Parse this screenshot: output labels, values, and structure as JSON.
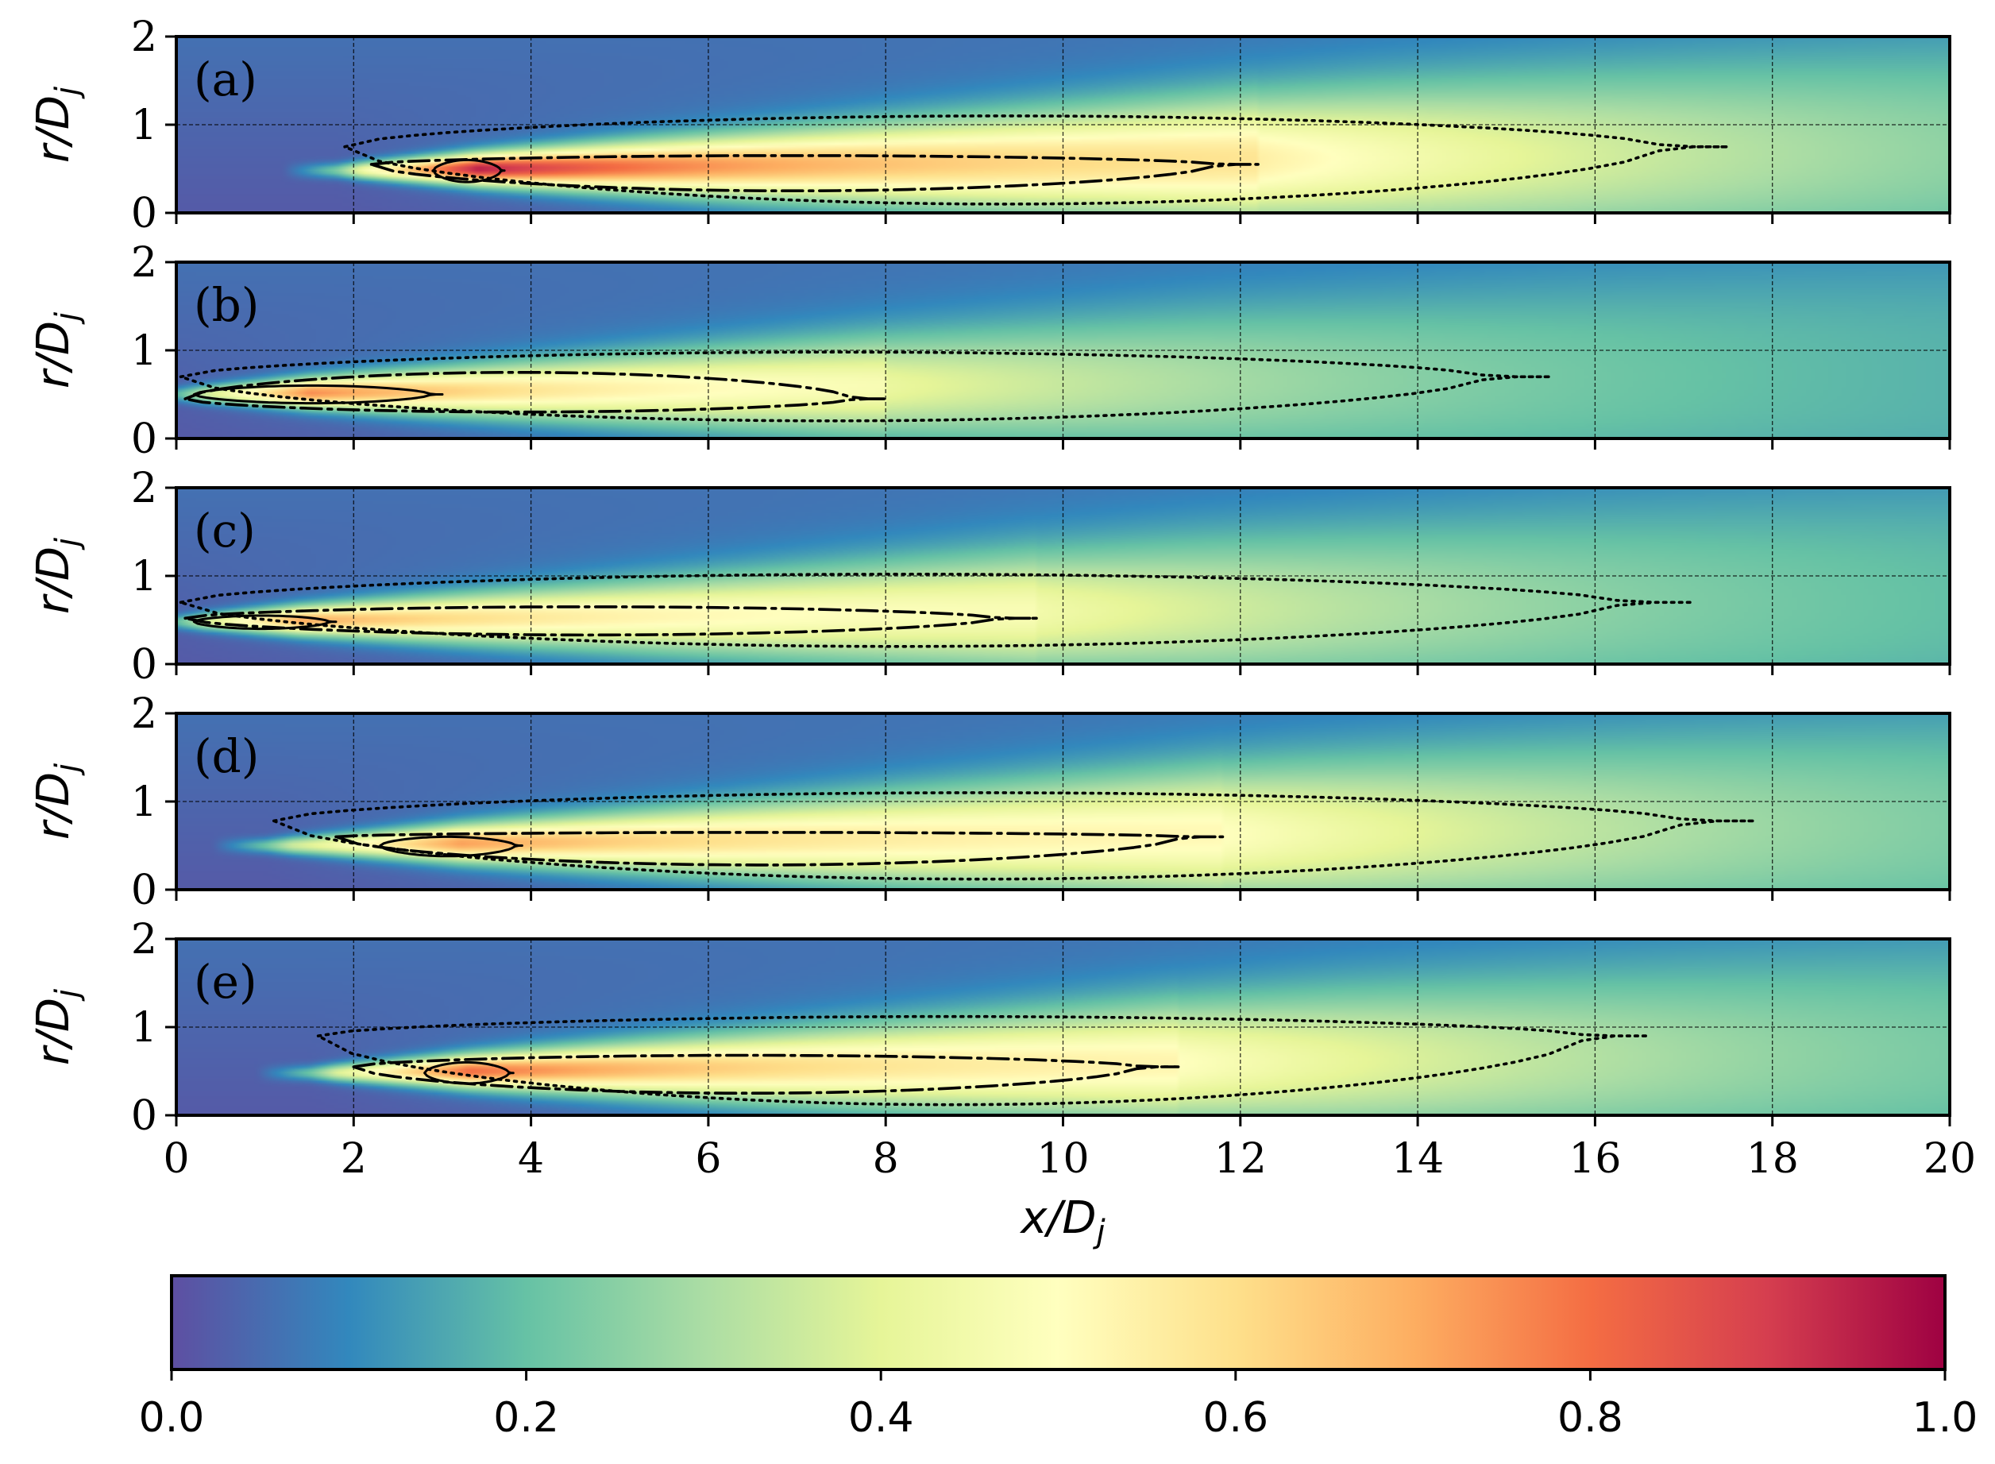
{
  "chart_data": {
    "type": "heatmap",
    "colormap": "Spectral_r",
    "colormap_stops": [
      "#5e4fa2",
      "#3288bd",
      "#66c2a5",
      "#abdda4",
      "#e6f598",
      "#ffffbf",
      "#fee08b",
      "#fdae61",
      "#f46d43",
      "#d53e4f",
      "#9e0142"
    ],
    "xlabel": "x/D",
    "xlabel_sub": "j",
    "ylabel": "r/D",
    "ylabel_sub": "j",
    "xlim": [
      0,
      20
    ],
    "ylim": [
      0,
      2
    ],
    "xticks": [
      0,
      2,
      4,
      6,
      8,
      10,
      12,
      14,
      16,
      18,
      20
    ],
    "yticks": [
      0,
      1,
      2
    ],
    "grid": true,
    "colorbar": {
      "range": [
        0.0,
        1.0
      ],
      "ticks": [
        "0.0",
        "0.2",
        "0.4",
        "0.6",
        "0.8",
        "1.0"
      ]
    },
    "panels": [
      {
        "label": "(a)",
        "field": {
          "x_start": 1.8,
          "x_peak": 3.4,
          "r_peak": 0.48,
          "peak": 0.95,
          "x_core_end": 12.2,
          "plateau": 0.55
        },
        "contours": [
          {
            "style": "dotted",
            "x_start": 1.9,
            "x_end": 17.5,
            "r_tip": 0.75,
            "r_top_max": 1.1,
            "r_bottom_min": 0.1
          },
          {
            "style": "dashdot",
            "x_start": 2.2,
            "x_end": 12.2,
            "r_tip": 0.55,
            "r_top_max": 0.65,
            "r_bottom_min": 0.25
          },
          {
            "style": "solid",
            "x_start": 2.9,
            "x_end": 3.7,
            "r_tip": 0.48,
            "r_top_max": 0.6,
            "r_bottom_min": 0.35
          }
        ]
      },
      {
        "label": "(b)",
        "field": {
          "x_start": 0.0,
          "x_peak": 1.5,
          "r_peak": 0.5,
          "peak": 0.75,
          "x_core_end": 8.0,
          "plateau": 0.42
        },
        "contours": [
          {
            "style": "dotted",
            "x_start": 0.05,
            "x_end": 15.5,
            "r_tip": 0.7,
            "r_top_max": 0.98,
            "r_bottom_min": 0.2
          },
          {
            "style": "dashdot",
            "x_start": 0.1,
            "x_end": 8.0,
            "r_tip": 0.45,
            "r_top_max": 0.75,
            "r_bottom_min": 0.3
          },
          {
            "style": "solid",
            "x_start": 0.2,
            "x_end": 3.0,
            "r_tip": 0.5,
            "r_top_max": 0.6,
            "r_bottom_min": 0.4
          }
        ]
      },
      {
        "label": "(c)",
        "field": {
          "x_start": 0.0,
          "x_peak": 1.4,
          "r_peak": 0.48,
          "peak": 0.7,
          "x_core_end": 9.7,
          "plateau": 0.45
        },
        "contours": [
          {
            "style": "dotted",
            "x_start": 0.05,
            "x_end": 17.1,
            "r_tip": 0.7,
            "r_top_max": 1.02,
            "r_bottom_min": 0.2
          },
          {
            "style": "dashdot",
            "x_start": 0.1,
            "x_end": 9.7,
            "r_tip": 0.52,
            "r_top_max": 0.65,
            "r_bottom_min": 0.33
          },
          {
            "style": "solid",
            "x_start": 0.2,
            "x_end": 1.8,
            "r_tip": 0.48,
            "r_top_max": 0.55,
            "r_bottom_min": 0.4
          }
        ]
      },
      {
        "label": "(d)",
        "field": {
          "x_start": 1.0,
          "x_peak": 3.2,
          "r_peak": 0.5,
          "peak": 0.72,
          "x_core_end": 11.8,
          "plateau": 0.5
        },
        "contours": [
          {
            "style": "dotted",
            "x_start": 1.1,
            "x_end": 17.8,
            "r_tip": 0.78,
            "r_top_max": 1.1,
            "r_bottom_min": 0.12
          },
          {
            "style": "dashdot",
            "x_start": 1.8,
            "x_end": 11.8,
            "r_tip": 0.6,
            "r_top_max": 0.65,
            "r_bottom_min": 0.28
          },
          {
            "style": "solid",
            "x_start": 2.3,
            "x_end": 3.9,
            "r_tip": 0.5,
            "r_top_max": 0.6,
            "r_bottom_min": 0.38
          }
        ]
      },
      {
        "label": "(e)",
        "field": {
          "x_start": 1.5,
          "x_peak": 3.3,
          "r_peak": 0.48,
          "peak": 0.8,
          "x_core_end": 11.3,
          "plateau": 0.5
        },
        "contours": [
          {
            "style": "dotted",
            "x_start": 1.6,
            "x_end": 16.6,
            "r_tip": 0.9,
            "r_top_max": 1.12,
            "r_bottom_min": 0.12
          },
          {
            "style": "dashdot",
            "x_start": 2.0,
            "x_end": 11.3,
            "r_tip": 0.55,
            "r_top_max": 0.68,
            "r_bottom_min": 0.25
          },
          {
            "style": "solid",
            "x_start": 2.8,
            "x_end": 3.8,
            "r_tip": 0.48,
            "r_top_max": 0.6,
            "r_bottom_min": 0.36
          }
        ]
      }
    ]
  }
}
